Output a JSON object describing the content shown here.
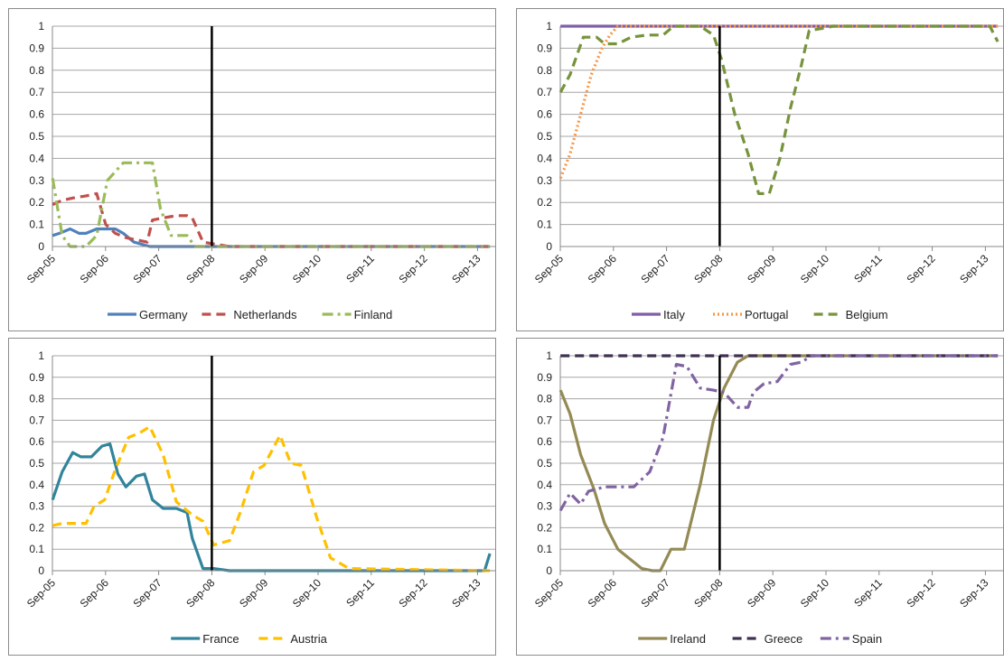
{
  "chart_data": [
    {
      "type": "line",
      "categories": [
        "Sep-05",
        "Sep-06",
        "Sep-07",
        "Sep-08",
        "Sep-09",
        "Sep-10",
        "Sep-11",
        "Sep-12",
        "Sep-13"
      ],
      "x_range": [
        "Sep-05",
        "Jan-14"
      ],
      "ylim": [
        0,
        1
      ],
      "yticks": [
        "0",
        "0.1",
        "0.2",
        "0.3",
        "0.4",
        "0.5",
        "0.6",
        "0.7",
        "0.8",
        "0.9",
        "1"
      ],
      "grid": true,
      "vline_at": "Sep-08",
      "legend_position": "bottom",
      "series": [
        {
          "name": "Germany",
          "color": "#4f81bd",
          "style": "solid",
          "x": [
            2005.67,
            2005.8,
            2006.0,
            2006.17,
            2006.3,
            2006.5,
            2006.67,
            2006.85,
            2007.0,
            2007.2,
            2007.5,
            2007.8,
            2008.0,
            2009.0,
            2013.9
          ],
          "y": [
            0.05,
            0.06,
            0.08,
            0.06,
            0.06,
            0.08,
            0.08,
            0.08,
            0.06,
            0.02,
            0.0,
            0.0,
            0.0,
            0.0,
            0.0
          ]
        },
        {
          "name": "Netherlands",
          "color": "#c0504d",
          "style": "dash",
          "x": [
            2005.67,
            2005.85,
            2006.05,
            2006.3,
            2006.5,
            2006.67,
            2006.85,
            2007.05,
            2007.25,
            2007.45,
            2007.55,
            2007.75,
            2008.0,
            2008.2,
            2008.3,
            2008.5,
            2009.0,
            2013.9
          ],
          "y": [
            0.19,
            0.21,
            0.22,
            0.23,
            0.24,
            0.1,
            0.06,
            0.04,
            0.03,
            0.02,
            0.12,
            0.13,
            0.14,
            0.14,
            0.13,
            0.02,
            0.0,
            0.0
          ]
        },
        {
          "name": "Finland",
          "color": "#9bbb59",
          "style": "dashdot",
          "x": [
            2005.67,
            2005.85,
            2006.0,
            2006.3,
            2006.5,
            2006.7,
            2007.0,
            2007.3,
            2007.55,
            2007.7,
            2007.9,
            2008.2,
            2008.35,
            2009.0,
            2013.9
          ],
          "y": [
            0.31,
            0.05,
            0.0,
            0.0,
            0.05,
            0.3,
            0.38,
            0.38,
            0.38,
            0.17,
            0.05,
            0.05,
            0.0,
            0.0,
            0.0
          ]
        }
      ]
    },
    {
      "type": "line",
      "categories": [
        "Sep-05",
        "Sep-06",
        "Sep-07",
        "Sep-08",
        "Sep-09",
        "Sep-10",
        "Sep-11",
        "Sep-12",
        "Sep-13"
      ],
      "x_range": [
        "Sep-05",
        "Jan-14"
      ],
      "ylim": [
        0,
        1
      ],
      "yticks": [
        "0",
        "0.1",
        "0.2",
        "0.3",
        "0.4",
        "0.5",
        "0.6",
        "0.7",
        "0.8",
        "0.9",
        "1"
      ],
      "grid": true,
      "vline_at": "Sep-08",
      "legend_position": "bottom",
      "series": [
        {
          "name": "Italy",
          "color": "#7f5fa8",
          "style": "solid",
          "x": [
            2005.67,
            2013.9
          ],
          "y": [
            1.0,
            1.0
          ]
        },
        {
          "name": "Portugal",
          "color": "#f79646",
          "style": "dot",
          "x": [
            2005.67,
            2005.85,
            2006.05,
            2006.25,
            2006.45,
            2006.6,
            2006.75,
            2013.9
          ],
          "y": [
            0.31,
            0.42,
            0.6,
            0.78,
            0.9,
            0.96,
            1.0,
            1.0
          ]
        },
        {
          "name": "Belgium",
          "color": "#77933c",
          "style": "dash",
          "x": [
            2005.67,
            2005.85,
            2006.1,
            2006.35,
            2006.5,
            2006.75,
            2007.0,
            2007.3,
            2007.6,
            2007.8,
            2008.0,
            2008.3,
            2008.55,
            2008.7,
            2008.95,
            2009.2,
            2009.4,
            2009.6,
            2009.8,
            2010.0,
            2010.2,
            2010.35,
            2010.6,
            2010.8,
            2011.5,
            2013.75,
            2013.9
          ],
          "y": [
            0.7,
            0.78,
            0.95,
            0.95,
            0.92,
            0.92,
            0.95,
            0.96,
            0.96,
            1.0,
            1.0,
            1.0,
            0.96,
            0.85,
            0.6,
            0.42,
            0.24,
            0.24,
            0.4,
            0.63,
            0.82,
            0.98,
            0.99,
            1.0,
            1.0,
            1.0,
            0.93
          ]
        }
      ]
    },
    {
      "type": "line",
      "categories": [
        "Sep-05",
        "Sep-06",
        "Sep-07",
        "Sep-08",
        "Sep-09",
        "Sep-10",
        "Sep-11",
        "Sep-12",
        "Sep-13"
      ],
      "x_range": [
        "Sep-05",
        "Jan-14"
      ],
      "ylim": [
        0,
        1
      ],
      "yticks": [
        "0",
        "0.1",
        "0.2",
        "0.3",
        "0.4",
        "0.5",
        "0.6",
        "0.7",
        "0.8",
        "0.9",
        "1"
      ],
      "grid": true,
      "vline_at": "Sep-08",
      "legend_position": "bottom",
      "series": [
        {
          "name": "France",
          "color": "#31849b",
          "style": "solid",
          "x": [
            2005.67,
            2005.85,
            2006.05,
            2006.2,
            2006.4,
            2006.6,
            2006.75,
            2006.9,
            2007.05,
            2007.25,
            2007.4,
            2007.55,
            2007.75,
            2008.0,
            2008.2,
            2008.3,
            2008.5,
            2008.7,
            2009.0,
            2013.8,
            2013.9
          ],
          "y": [
            0.33,
            0.46,
            0.55,
            0.53,
            0.53,
            0.58,
            0.59,
            0.45,
            0.39,
            0.44,
            0.45,
            0.33,
            0.29,
            0.29,
            0.27,
            0.15,
            0.01,
            0.01,
            0.0,
            0.0,
            0.08
          ]
        },
        {
          "name": "Austria",
          "color": "#ffc000",
          "style": "dash",
          "x": [
            2005.67,
            2005.85,
            2006.05,
            2006.3,
            2006.45,
            2006.65,
            2006.85,
            2007.1,
            2007.3,
            2007.5,
            2007.75,
            2008.0,
            2008.3,
            2008.5,
            2008.7,
            2009.0,
            2009.2,
            2009.45,
            2009.65,
            2009.95,
            2010.15,
            2010.35,
            2010.65,
            2010.9,
            2011.25,
            2013.9
          ],
          "y": [
            0.21,
            0.22,
            0.22,
            0.22,
            0.3,
            0.33,
            0.47,
            0.62,
            0.64,
            0.67,
            0.54,
            0.32,
            0.26,
            0.23,
            0.12,
            0.14,
            0.27,
            0.46,
            0.49,
            0.63,
            0.5,
            0.49,
            0.24,
            0.06,
            0.01,
            0.0
          ]
        }
      ]
    },
    {
      "type": "line",
      "categories": [
        "Sep-05",
        "Sep-06",
        "Sep-07",
        "Sep-08",
        "Sep-09",
        "Sep-10",
        "Sep-11",
        "Sep-12",
        "Sep-13"
      ],
      "x_range": [
        "Sep-05",
        "Jan-14"
      ],
      "ylim": [
        0,
        1
      ],
      "yticks": [
        "0",
        "0.1",
        "0.2",
        "0.3",
        "0.4",
        "0.5",
        "0.6",
        "0.7",
        "0.8",
        "0.9",
        "1"
      ],
      "grid": true,
      "vline_at": "Sep-08",
      "legend_position": "bottom",
      "series": [
        {
          "name": "Ireland",
          "color": "#948a54",
          "style": "solid",
          "x": [
            2005.67,
            2005.85,
            2006.05,
            2006.3,
            2006.5,
            2006.75,
            2007.0,
            2007.2,
            2007.4,
            2007.55,
            2007.75,
            2008.0,
            2008.3,
            2008.55,
            2008.75,
            2009.0,
            2009.2,
            2013.9
          ],
          "y": [
            0.84,
            0.73,
            0.54,
            0.38,
            0.22,
            0.1,
            0.05,
            0.01,
            0.0,
            0.0,
            0.1,
            0.1,
            0.4,
            0.7,
            0.85,
            0.97,
            1.0,
            1.0
          ]
        },
        {
          "name": "Greece",
          "color": "#403151",
          "style": "dash",
          "x": [
            2005.67,
            2013.9
          ],
          "y": [
            1.0,
            1.0
          ]
        },
        {
          "name": "Spain",
          "color": "#8064a2",
          "style": "dashdot",
          "x": [
            2005.67,
            2005.85,
            2006.05,
            2006.2,
            2006.5,
            2006.75,
            2007.05,
            2007.35,
            2007.6,
            2007.85,
            2008.05,
            2008.3,
            2008.55,
            2008.75,
            2009.0,
            2009.2,
            2009.3,
            2009.5,
            2009.75,
            2010.0,
            2010.2,
            2010.4,
            2010.5,
            2013.9
          ],
          "y": [
            0.28,
            0.36,
            0.31,
            0.37,
            0.39,
            0.39,
            0.39,
            0.46,
            0.62,
            0.96,
            0.95,
            0.85,
            0.84,
            0.83,
            0.76,
            0.76,
            0.83,
            0.87,
            0.88,
            0.96,
            0.97,
            1.0,
            1.0,
            1.0
          ]
        }
      ]
    }
  ]
}
